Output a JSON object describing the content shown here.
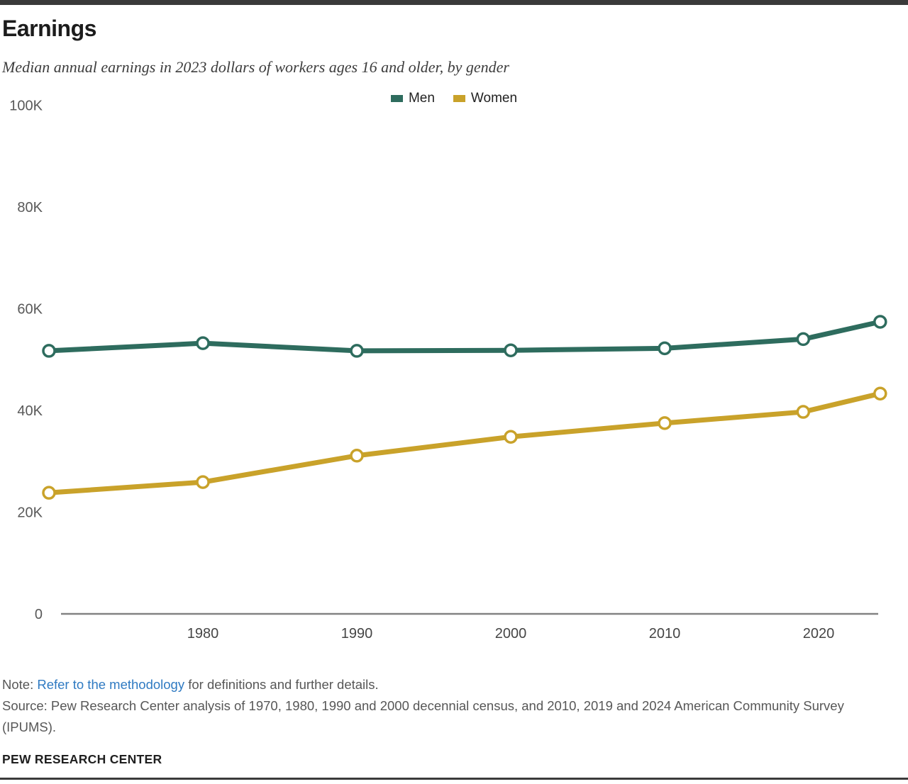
{
  "chart_data": {
    "type": "line",
    "title": "Earnings",
    "subtitle": "Median annual earnings in 2023 dollars of workers ages 16 and older, by gender",
    "x": [
      1970,
      1980,
      1990,
      2000,
      2010,
      2019,
      2024
    ],
    "series": [
      {
        "name": "Men",
        "color": "#2e6c5e",
        "values": [
          51700,
          53200,
          51700,
          51800,
          52200,
          54000,
          57400
        ]
      },
      {
        "name": "Women",
        "color": "#c9a22a",
        "values": [
          23800,
          25900,
          31100,
          34800,
          37500,
          39700,
          43300
        ]
      }
    ],
    "x_ticks": [
      "1980",
      "1990",
      "2000",
      "2010",
      "2020"
    ],
    "y_ticks": [
      {
        "label": "100K",
        "value": 100000
      },
      {
        "label": "80K",
        "value": 80000
      },
      {
        "label": "60K",
        "value": 60000
      },
      {
        "label": "40K",
        "value": 40000
      },
      {
        "label": "20K",
        "value": 20000
      },
      {
        "label": "0",
        "value": 0
      }
    ],
    "ylim": [
      0,
      100000
    ],
    "grid": false,
    "legend_position": "top-center",
    "marker_style": "open-circle"
  },
  "colors": {
    "men": "#2e6c5e",
    "women": "#c9a22a",
    "axis_line": "#828282",
    "link": "#2f7ac2",
    "top_bar": "#3a3a3a"
  },
  "footer": {
    "note_prefix": "Note: ",
    "note_link": "Refer to the methodology",
    "note_suffix": " for definitions and further details.",
    "source": "Source: Pew Research Center analysis of 1970, 1980, 1990 and 2000 decennial census, and 2010, 2019 and 2024 American Community Survey (IPUMS).",
    "brand": "PEW RESEARCH CENTER"
  }
}
